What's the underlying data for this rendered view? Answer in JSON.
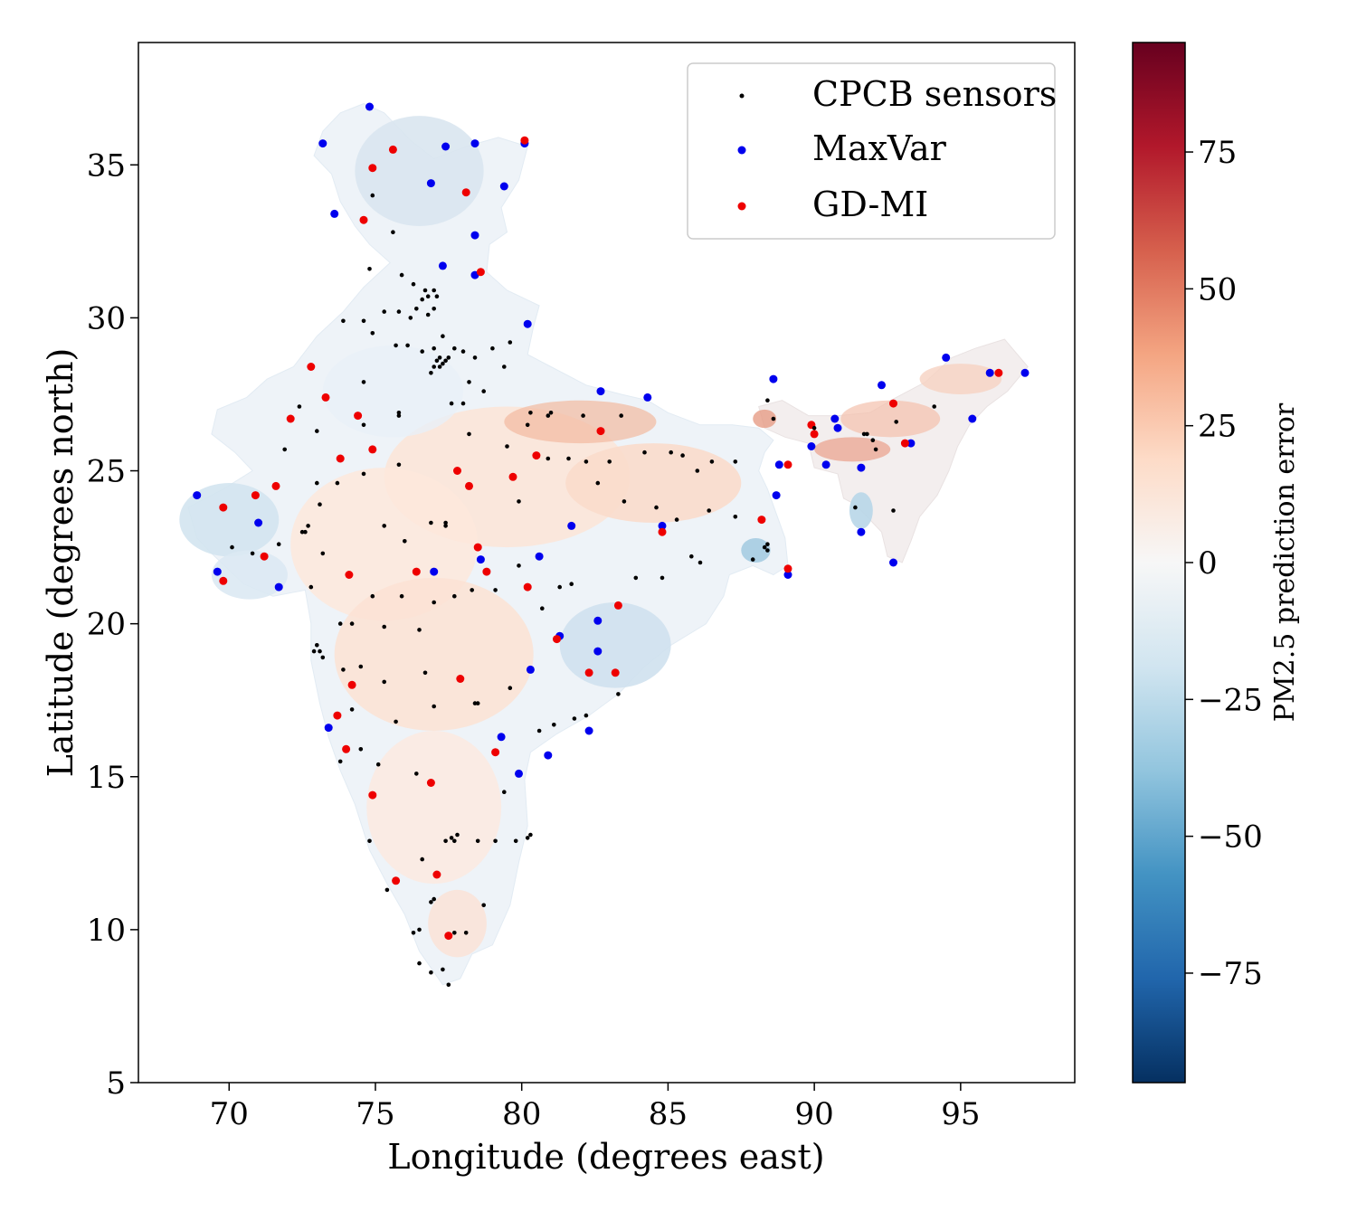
{
  "chart_data": {
    "type": "scatter",
    "xlabel": "Longitude (degrees east)",
    "ylabel": "Latitude (degrees north)",
    "xlim": [
      66.9,
      98.9
    ],
    "ylim": [
      5,
      39
    ],
    "xticks": [
      70,
      75,
      80,
      85,
      90,
      95
    ],
    "yticks": [
      5,
      10,
      15,
      20,
      25,
      30,
      35
    ],
    "background_map": "PM2.5 prediction error",
    "colorbar": {
      "label": "PM2.5 prediction error",
      "range": [
        -95,
        95
      ],
      "ticks": [
        75,
        50,
        25,
        0,
        -25,
        -50,
        -75
      ],
      "tick_labels": [
        "75",
        "50",
        "25",
        "0",
        "−25",
        "−50",
        "−75"
      ],
      "colormap": "RdBu_r"
    },
    "legend": {
      "position": "top-right",
      "entries": [
        "CPCB sensors",
        "MaxVar",
        "GD-MI"
      ]
    },
    "series": [
      {
        "name": "MaxVar",
        "color": "#0000ee",
        "points": [
          [
            74.8,
            36.9
          ],
          [
            73.2,
            35.7
          ],
          [
            77.4,
            35.6
          ],
          [
            78.4,
            35.7
          ],
          [
            80.1,
            35.7
          ],
          [
            76.9,
            34.4
          ],
          [
            79.4,
            34.3
          ],
          [
            73.6,
            33.4
          ],
          [
            78.4,
            32.7
          ],
          [
            77.3,
            31.7
          ],
          [
            78.4,
            31.4
          ],
          [
            80.2,
            29.8
          ],
          [
            68.9,
            24.2
          ],
          [
            71.0,
            23.3
          ],
          [
            69.6,
            21.7
          ],
          [
            71.7,
            21.2
          ],
          [
            77.0,
            21.7
          ],
          [
            78.6,
            22.1
          ],
          [
            80.6,
            22.2
          ],
          [
            81.7,
            23.2
          ],
          [
            84.8,
            23.2
          ],
          [
            82.7,
            27.6
          ],
          [
            84.3,
            27.4
          ],
          [
            88.6,
            28.0
          ],
          [
            88.7,
            24.2
          ],
          [
            88.8,
            25.2
          ],
          [
            89.1,
            21.6
          ],
          [
            89.9,
            25.8
          ],
          [
            90.4,
            25.2
          ],
          [
            90.7,
            26.7
          ],
          [
            90.8,
            26.4
          ],
          [
            91.6,
            25.1
          ],
          [
            91.6,
            23.0
          ],
          [
            92.3,
            27.8
          ],
          [
            92.7,
            22.0
          ],
          [
            93.3,
            25.9
          ],
          [
            94.5,
            28.7
          ],
          [
            95.4,
            26.7
          ],
          [
            96.0,
            28.2
          ],
          [
            97.2,
            28.2
          ],
          [
            81.3,
            19.6
          ],
          [
            82.6,
            20.1
          ],
          [
            82.6,
            19.1
          ],
          [
            80.3,
            18.5
          ],
          [
            82.3,
            16.5
          ],
          [
            79.3,
            16.3
          ],
          [
            73.4,
            16.6
          ],
          [
            80.9,
            15.7
          ],
          [
            79.9,
            15.1
          ]
        ]
      },
      {
        "name": "GD-MI",
        "color": "#ee0000",
        "points": [
          [
            80.1,
            35.8
          ],
          [
            75.6,
            35.5
          ],
          [
            74.9,
            34.9
          ],
          [
            78.1,
            34.1
          ],
          [
            74.6,
            33.2
          ],
          [
            78.6,
            31.5
          ],
          [
            72.8,
            28.4
          ],
          [
            73.3,
            27.4
          ],
          [
            72.1,
            26.7
          ],
          [
            74.4,
            26.8
          ],
          [
            73.8,
            25.4
          ],
          [
            74.9,
            25.7
          ],
          [
            71.6,
            24.5
          ],
          [
            70.9,
            24.2
          ],
          [
            69.8,
            23.8
          ],
          [
            71.2,
            22.2
          ],
          [
            69.8,
            21.4
          ],
          [
            74.1,
            21.6
          ],
          [
            76.4,
            21.7
          ],
          [
            77.8,
            25.0
          ],
          [
            78.2,
            24.5
          ],
          [
            79.7,
            24.8
          ],
          [
            80.5,
            25.5
          ],
          [
            78.5,
            22.5
          ],
          [
            78.8,
            21.7
          ],
          [
            80.2,
            21.2
          ],
          [
            81.2,
            19.5
          ],
          [
            82.7,
            26.3
          ],
          [
            83.3,
            20.6
          ],
          [
            82.3,
            18.4
          ],
          [
            83.2,
            18.4
          ],
          [
            84.8,
            23.0
          ],
          [
            88.2,
            23.4
          ],
          [
            89.1,
            25.2
          ],
          [
            89.1,
            21.8
          ],
          [
            89.9,
            26.5
          ],
          [
            90.0,
            26.2
          ],
          [
            92.7,
            27.2
          ],
          [
            93.1,
            25.9
          ],
          [
            96.3,
            28.2
          ],
          [
            74.2,
            18.0
          ],
          [
            73.7,
            17.0
          ],
          [
            74.0,
            15.9
          ],
          [
            77.9,
            18.2
          ],
          [
            79.1,
            15.8
          ],
          [
            76.9,
            14.8
          ],
          [
            74.9,
            14.4
          ],
          [
            75.7,
            11.6
          ],
          [
            77.1,
            11.8
          ],
          [
            77.5,
            9.8
          ]
        ]
      },
      {
        "name": "CPCB sensors",
        "color": "#000000",
        "points": [
          [
            74.9,
            34.0
          ],
          [
            75.6,
            32.8
          ],
          [
            74.8,
            31.6
          ],
          [
            75.9,
            31.4
          ],
          [
            76.3,
            31.1
          ],
          [
            76.7,
            30.9
          ],
          [
            77.0,
            30.9
          ],
          [
            76.8,
            30.7
          ],
          [
            77.1,
            30.7
          ],
          [
            76.6,
            30.6
          ],
          [
            77.0,
            30.3
          ],
          [
            76.4,
            30.3
          ],
          [
            76.8,
            30.1
          ],
          [
            76.2,
            30.0
          ],
          [
            75.8,
            30.2
          ],
          [
            75.3,
            30.2
          ],
          [
            74.6,
            29.9
          ],
          [
            74.9,
            29.5
          ],
          [
            75.7,
            29.1
          ],
          [
            76.1,
            29.1
          ],
          [
            76.6,
            28.9
          ],
          [
            77.0,
            29.0
          ],
          [
            77.3,
            29.4
          ],
          [
            77.7,
            29.0
          ],
          [
            77.2,
            28.7
          ],
          [
            77.1,
            28.6
          ],
          [
            77.3,
            28.5
          ],
          [
            77.4,
            28.6
          ],
          [
            77.2,
            28.4
          ],
          [
            77.0,
            28.4
          ],
          [
            77.5,
            28.7
          ],
          [
            76.9,
            28.2
          ],
          [
            78.0,
            28.9
          ],
          [
            78.4,
            28.7
          ],
          [
            79.4,
            28.4
          ],
          [
            79.0,
            29.0
          ],
          [
            79.6,
            29.2
          ],
          [
            78.2,
            27.9
          ],
          [
            77.6,
            27.2
          ],
          [
            78.0,
            27.2
          ],
          [
            78.7,
            27.6
          ],
          [
            80.2,
            26.5
          ],
          [
            80.9,
            26.8
          ],
          [
            81.0,
            26.9
          ],
          [
            82.1,
            26.8
          ],
          [
            83.4,
            26.8
          ],
          [
            80.9,
            25.4
          ],
          [
            79.9,
            24.0
          ],
          [
            82.2,
            25.3
          ],
          [
            83.0,
            25.3
          ],
          [
            84.2,
            25.6
          ],
          [
            85.1,
            25.6
          ],
          [
            85.5,
            25.5
          ],
          [
            86.5,
            25.3
          ],
          [
            87.3,
            25.3
          ],
          [
            86.0,
            25.0
          ],
          [
            83.5,
            24.0
          ],
          [
            84.6,
            23.8
          ],
          [
            86.4,
            23.7
          ],
          [
            85.3,
            23.4
          ],
          [
            87.3,
            23.5
          ],
          [
            88.4,
            22.6
          ],
          [
            88.3,
            22.5
          ],
          [
            88.4,
            22.4
          ],
          [
            87.9,
            22.1
          ],
          [
            86.1,
            22.0
          ],
          [
            85.8,
            22.2
          ],
          [
            84.8,
            21.5
          ],
          [
            83.9,
            21.5
          ],
          [
            81.7,
            21.3
          ],
          [
            81.3,
            21.2
          ],
          [
            80.7,
            20.5
          ],
          [
            79.1,
            21.1
          ],
          [
            79.9,
            21.9
          ],
          [
            78.3,
            21.1
          ],
          [
            77.7,
            20.9
          ],
          [
            77.0,
            20.7
          ],
          [
            75.9,
            20.9
          ],
          [
            74.9,
            20.9
          ],
          [
            74.2,
            20.0
          ],
          [
            73.8,
            20.0
          ],
          [
            73.0,
            19.3
          ],
          [
            73.1,
            19.1
          ],
          [
            72.9,
            19.1
          ],
          [
            73.2,
            18.9
          ],
          [
            73.9,
            18.5
          ],
          [
            74.5,
            18.6
          ],
          [
            75.3,
            19.9
          ],
          [
            76.5,
            19.8
          ],
          [
            78.5,
            17.4
          ],
          [
            78.4,
            17.4
          ],
          [
            79.6,
            17.9
          ],
          [
            80.6,
            16.5
          ],
          [
            81.1,
            16.7
          ],
          [
            81.8,
            16.9
          ],
          [
            83.3,
            17.7
          ],
          [
            82.2,
            17.0
          ],
          [
            79.4,
            14.5
          ],
          [
            77.6,
            13.0
          ],
          [
            77.4,
            12.9
          ],
          [
            77.7,
            12.9
          ],
          [
            76.6,
            12.3
          ],
          [
            77.8,
            13.1
          ],
          [
            78.5,
            12.9
          ],
          [
            79.1,
            12.9
          ],
          [
            79.8,
            12.9
          ],
          [
            80.2,
            13.0
          ],
          [
            80.3,
            13.1
          ],
          [
            78.7,
            10.8
          ],
          [
            77.0,
            11.0
          ],
          [
            76.9,
            10.9
          ],
          [
            76.3,
            9.9
          ],
          [
            76.5,
            10.0
          ],
          [
            77.7,
            9.9
          ],
          [
            78.1,
            9.9
          ],
          [
            76.9,
            8.6
          ],
          [
            76.5,
            8.9
          ],
          [
            77.3,
            8.7
          ],
          [
            77.5,
            8.2
          ],
          [
            74.8,
            12.9
          ],
          [
            75.4,
            11.3
          ],
          [
            73.8,
            15.5
          ],
          [
            74.5,
            15.9
          ],
          [
            75.1,
            15.4
          ],
          [
            76.4,
            15.1
          ],
          [
            75.7,
            16.8
          ],
          [
            77.0,
            17.3
          ],
          [
            76.7,
            18.4
          ],
          [
            75.3,
            18.1
          ],
          [
            74.2,
            17.2
          ],
          [
            72.8,
            21.2
          ],
          [
            72.6,
            23.0
          ],
          [
            72.7,
            23.2
          ],
          [
            72.5,
            23.0
          ],
          [
            73.2,
            22.3
          ],
          [
            70.1,
            22.5
          ],
          [
            70.8,
            22.3
          ],
          [
            71.7,
            22.6
          ],
          [
            73.0,
            24.6
          ],
          [
            73.7,
            24.6
          ],
          [
            74.6,
            24.9
          ],
          [
            75.8,
            25.2
          ],
          [
            75.8,
            26.9
          ],
          [
            75.8,
            26.8
          ],
          [
            74.6,
            26.5
          ],
          [
            73.0,
            26.3
          ],
          [
            71.9,
            25.7
          ],
          [
            73.1,
            23.9
          ],
          [
            75.3,
            23.2
          ],
          [
            76.0,
            22.7
          ],
          [
            76.9,
            23.3
          ],
          [
            77.4,
            23.3
          ],
          [
            77.4,
            23.2
          ],
          [
            78.2,
            26.2
          ],
          [
            79.5,
            25.8
          ],
          [
            80.3,
            26.9
          ],
          [
            81.6,
            25.4
          ],
          [
            82.6,
            24.6
          ],
          [
            92.8,
            26.6
          ],
          [
            91.8,
            26.2
          ],
          [
            91.7,
            26.2
          ],
          [
            92.0,
            26.0
          ],
          [
            92.1,
            25.7
          ],
          [
            91.4,
            23.8
          ],
          [
            92.7,
            23.7
          ],
          [
            94.1,
            27.1
          ],
          [
            90.0,
            26.4
          ],
          [
            88.4,
            27.3
          ],
          [
            88.6,
            26.7
          ],
          [
            73.9,
            29.9
          ],
          [
            72.4,
            27.1
          ],
          [
            74.6,
            27.9
          ]
        ]
      }
    ]
  }
}
